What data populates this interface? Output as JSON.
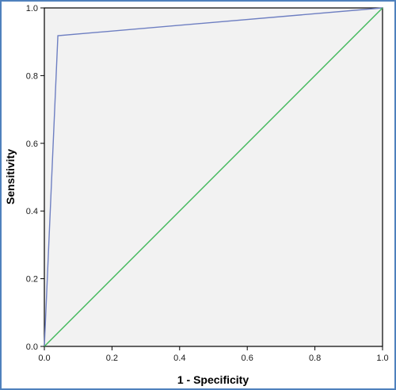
{
  "chart_data": {
    "type": "line",
    "title": "",
    "xlabel": "1 - Specificity",
    "ylabel": "Sensitivity",
    "xlim": [
      0.0,
      1.0
    ],
    "ylim": [
      0.0,
      1.0
    ],
    "x_ticks": [
      "0.0",
      "0.2",
      "0.4",
      "0.6",
      "0.8",
      "1.0"
    ],
    "y_ticks": [
      "0.0",
      "0.2",
      "0.4",
      "0.6",
      "0.8",
      "1.0"
    ],
    "grid": false,
    "legend": "none",
    "plot_background": "#f2f2f2",
    "series": [
      {
        "color": "#6e7fc2",
        "x": [
          0.0,
          0.04,
          1.0
        ],
        "y": [
          0.0,
          0.918,
          1.0
        ]
      },
      {
        "color": "#41b85a",
        "x": [
          0.0,
          1.0
        ],
        "y": [
          0.0,
          1.0
        ]
      }
    ]
  }
}
